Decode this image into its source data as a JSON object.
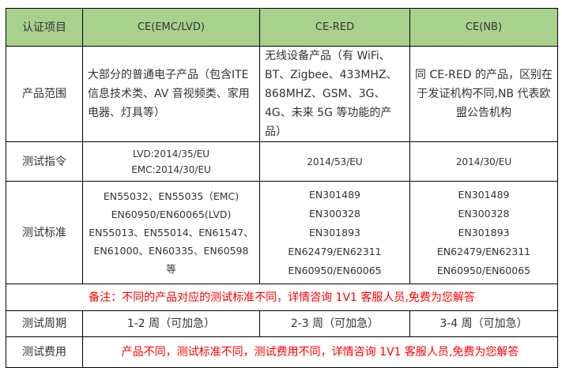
{
  "colors": {
    "header_bg": "#a9d18e",
    "notice": "#ff0000",
    "border": "#000000"
  },
  "header": [
    "认证项目",
    "CE(EMC/LVD)",
    "CE-RED",
    "CE(NB)"
  ],
  "rows": {
    "scope": {
      "label": "产品范围",
      "cells": [
        "大部分的普通电子产品（包含ITE 信息技术类、AV 音视频类、家用电器、灯具等）",
        "无线设备产品（有 WiFi、BT、Zigbee、433MHZ、868MHZ、GSM、3G、4G、未来 5G 等功能的产品）",
        "同 CE-RED 的产品，区别在于发证机构不同,NB 代表欧盟公告机构"
      ]
    },
    "directive": {
      "label": "测试指令",
      "cells": [
        [
          "LVD:2014/35/EU",
          "EMC:2014/30/EU"
        ],
        [
          "2014/53/EU"
        ],
        [
          "2014/30/EU"
        ]
      ]
    },
    "standard": {
      "label": "测试标准",
      "cells": [
        [
          "EN55032、EN55035（EMC)",
          "EN60950/EN60065(LVD)",
          "EN55013、EN55014、EN61547、",
          "EN61000、EN60335、EN60598 等"
        ],
        [
          "EN301489",
          "EN300328",
          "EN301893",
          "EN62479/EN62311",
          "EN60950/EN60065"
        ],
        [
          "EN301489",
          "EN300328",
          "EN301893",
          "EN62479/EN62311",
          "EN60950/EN60065"
        ]
      ]
    },
    "note": "备注：不同的产品对应的测试标准不同，详情咨询 1V1 客服人员,免费为您解答",
    "period": {
      "label": "测试周期",
      "cells": [
        "1-2 周（可加急）",
        "2-3 周（可加急）",
        "3-4 周（可加急）"
      ]
    },
    "cost": {
      "label": "测试费用",
      "text": "产品不同，测试标准不同，测试费用不同，详情咨询 1V1 客服人员,免费为您解答"
    }
  }
}
